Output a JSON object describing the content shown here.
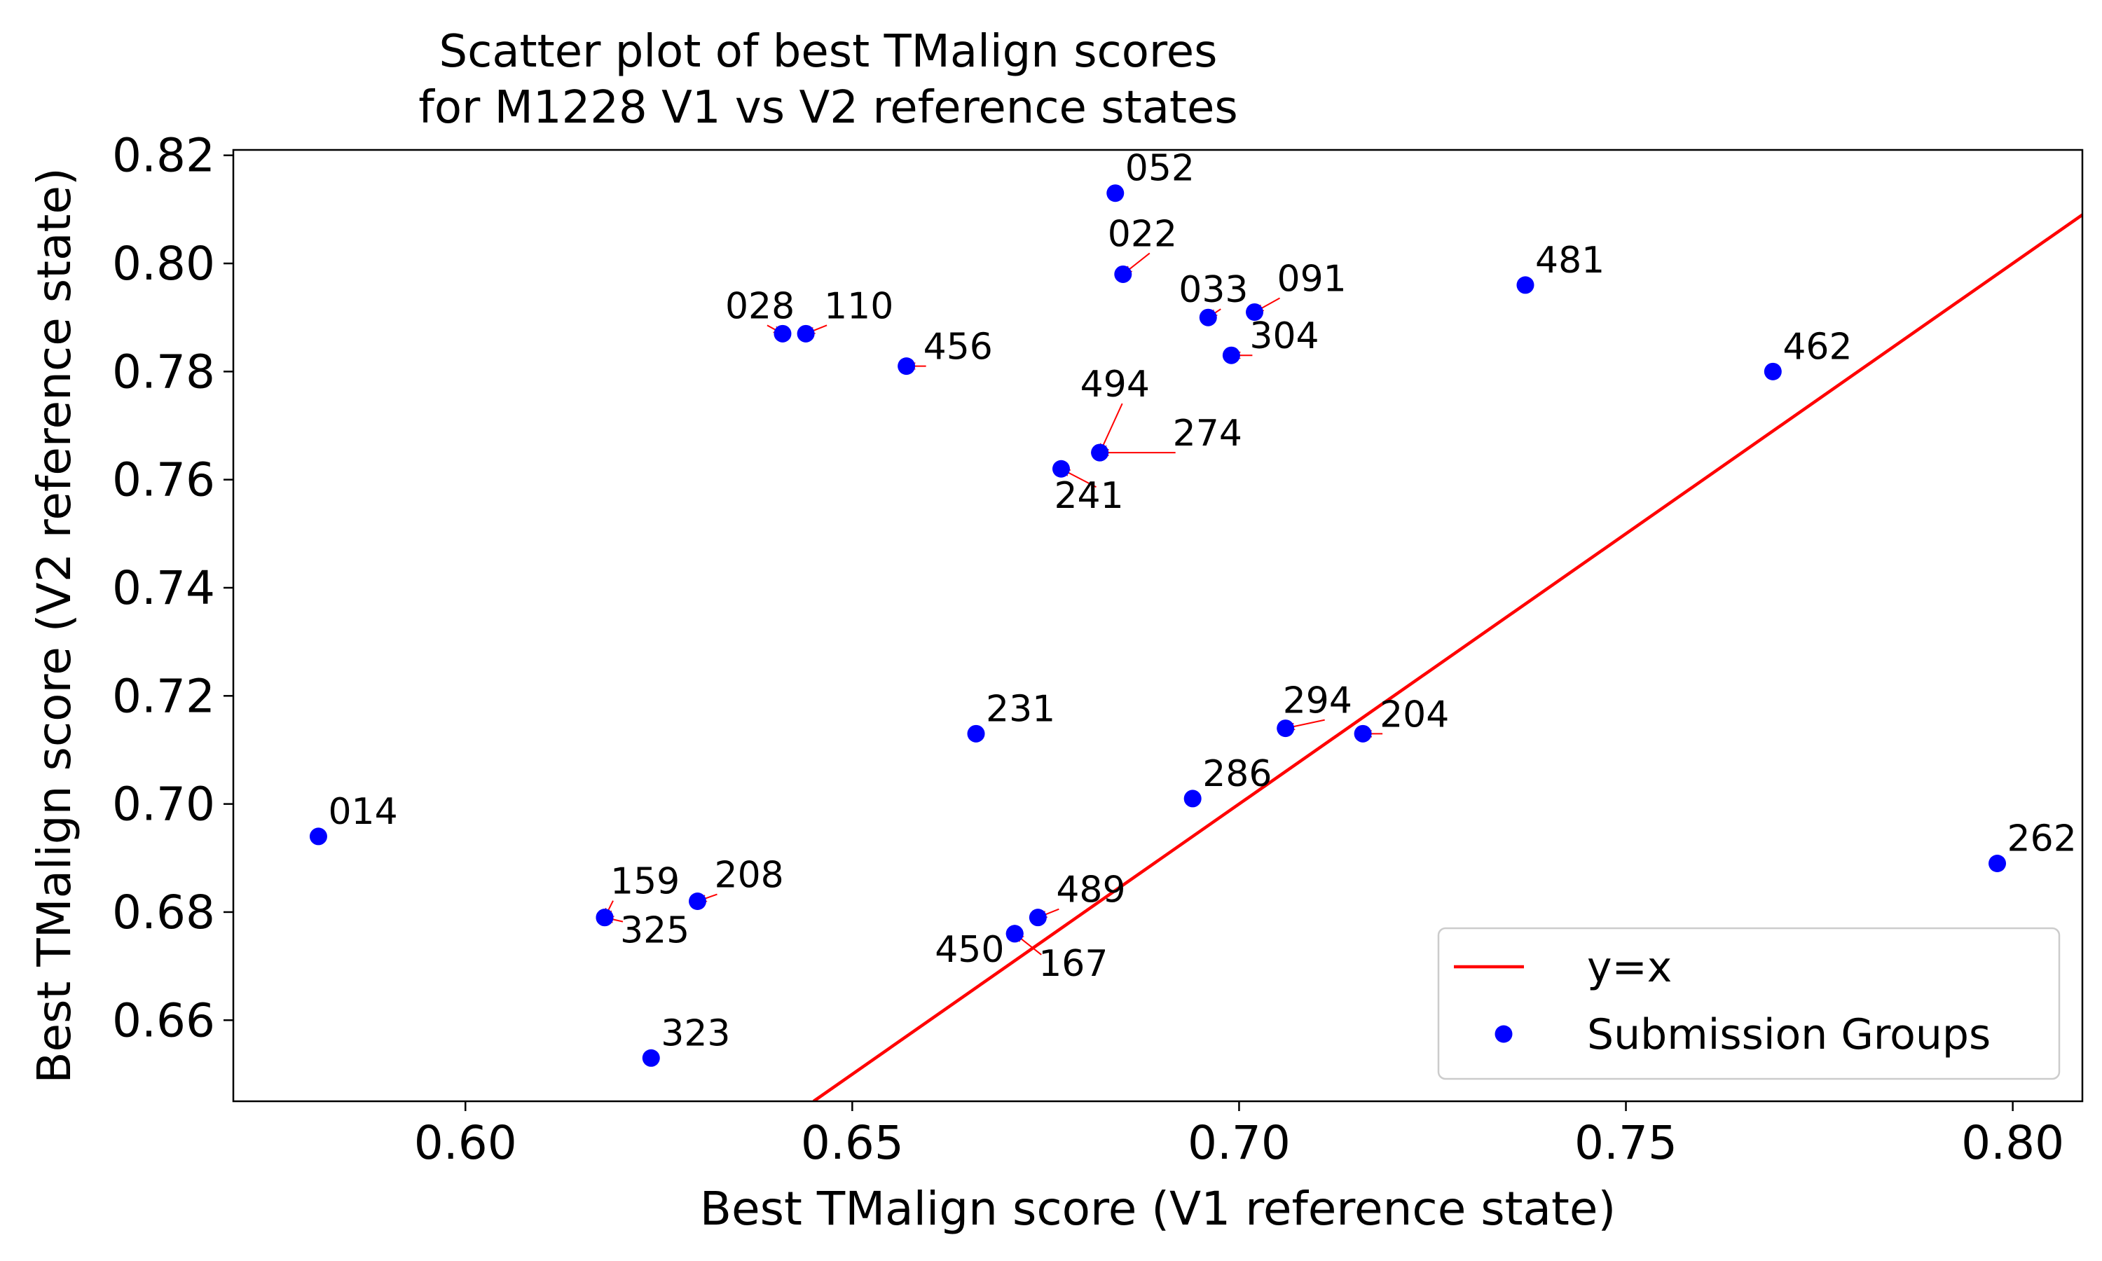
{
  "chart_data": {
    "type": "scatter",
    "title": "Scatter plot of best TMalign scores\nfor M1228 V1 vs V2 reference states",
    "xlabel": "Best TMalign score (V1 reference state)",
    "ylabel": "Best TMalign score (V2 reference state)",
    "xlim": [
      0.57,
      0.809
    ],
    "ylim": [
      0.645,
      0.821
    ],
    "xticks": [
      "0.60",
      "0.65",
      "0.70",
      "0.75",
      "0.80"
    ],
    "yticks": [
      "0.66",
      "0.68",
      "0.70",
      "0.72",
      "0.74",
      "0.76",
      "0.78",
      "0.80",
      "0.82"
    ],
    "grid": false,
    "legend": {
      "position": "bottom-right",
      "entries": [
        {
          "label": "y=x",
          "kind": "line",
          "color": "#ff0000"
        },
        {
          "label": "Submission Groups",
          "kind": "marker",
          "color": "#0000ff"
        }
      ]
    },
    "reference_line": {
      "label": "y=x",
      "color": "#ff0000"
    },
    "marker_color": "#0000ff",
    "arrow_color": "#ff0000",
    "series": [
      {
        "name": "Submission Groups",
        "points": [
          {
            "label": "052",
            "x": 0.684,
            "y": 0.813
          },
          {
            "label": "022",
            "x": 0.685,
            "y": 0.798
          },
          {
            "label": "033",
            "x": 0.696,
            "y": 0.79
          },
          {
            "label": "091",
            "x": 0.702,
            "y": 0.791
          },
          {
            "label": "304",
            "x": 0.699,
            "y": 0.783
          },
          {
            "label": "481",
            "x": 0.737,
            "y": 0.796
          },
          {
            "label": "462",
            "x": 0.769,
            "y": 0.78
          },
          {
            "label": "028",
            "x": 0.641,
            "y": 0.787
          },
          {
            "label": "110",
            "x": 0.644,
            "y": 0.787
          },
          {
            "label": "456",
            "x": 0.657,
            "y": 0.781
          },
          {
            "label": "494",
            "x": 0.682,
            "y": 0.765
          },
          {
            "label": "274",
            "x": 0.682,
            "y": 0.765
          },
          {
            "label": "241",
            "x": 0.677,
            "y": 0.762
          },
          {
            "label": "231",
            "x": 0.666,
            "y": 0.713
          },
          {
            "label": "294",
            "x": 0.706,
            "y": 0.714
          },
          {
            "label": "204",
            "x": 0.716,
            "y": 0.713
          },
          {
            "label": "286",
            "x": 0.694,
            "y": 0.701
          },
          {
            "label": "014",
            "x": 0.581,
            "y": 0.694
          },
          {
            "label": "262",
            "x": 0.798,
            "y": 0.689
          },
          {
            "label": "159",
            "x": 0.618,
            "y": 0.679
          },
          {
            "label": "325",
            "x": 0.618,
            "y": 0.679
          },
          {
            "label": "208",
            "x": 0.63,
            "y": 0.682
          },
          {
            "label": "489",
            "x": 0.674,
            "y": 0.679
          },
          {
            "label": "450",
            "x": 0.671,
            "y": 0.676
          },
          {
            "label": "167",
            "x": 0.671,
            "y": 0.676
          },
          {
            "label": "323",
            "x": 0.624,
            "y": 0.653
          }
        ]
      }
    ]
  }
}
